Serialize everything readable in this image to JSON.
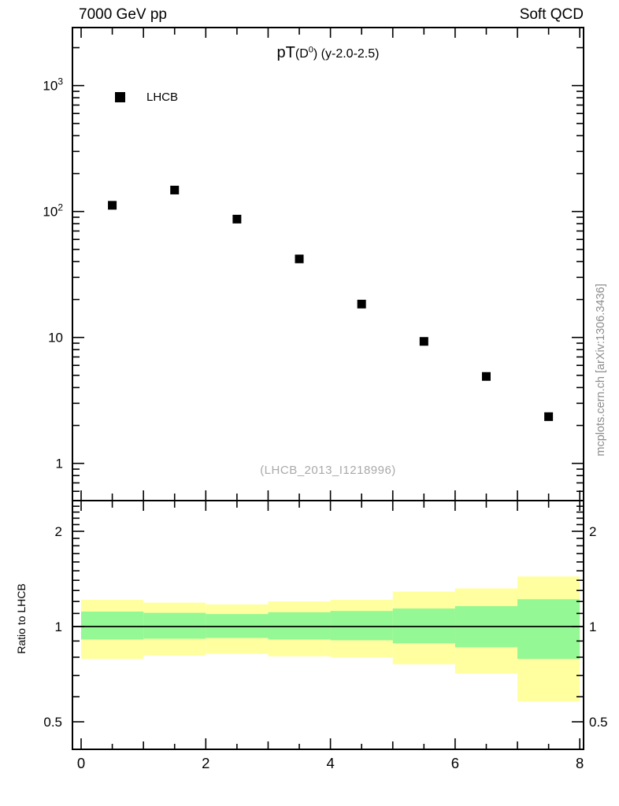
{
  "header": {
    "left": "7000 GeV pp",
    "right": "Soft QCD"
  },
  "title": {
    "pt": "pT",
    "arg_pre": "(D",
    "sup": "0",
    "post": ") (y-2.0-2.5)"
  },
  "legend": {
    "label": "LHCB",
    "marker": "black-filled-square"
  },
  "watermark": "(LHCB_2013_I1218996)",
  "side_label": "mcplots.cern.ch [arXiv:1306.3436]",
  "colors": {
    "outer_band": "#ffff9f",
    "inner_band": "#94f894",
    "marker": "#000000",
    "frame": "#000000",
    "watermark_gray": "#a9a9a9",
    "side_label_gray": "#8c8c8c"
  },
  "chart_data": {
    "type": "scatter",
    "title": "pT(D0) (y-2.0-2.5)",
    "x_axis": {
      "lim": [
        -0.14,
        8.06
      ],
      "labeled_ticks": [
        0,
        2,
        4,
        6,
        8
      ],
      "minor_step": 0.5
    },
    "top_panel": {
      "yscale": "log",
      "ylim": [
        0.5,
        2900
      ],
      "y_labeled_ticks": [
        1000,
        100,
        10,
        1
      ],
      "legend_position": "top-left-inside",
      "series": [
        {
          "name": "LHCB",
          "marker": "filled-square",
          "x": [
            0.5,
            1.5,
            2.5,
            3.5,
            4.5,
            5.5,
            6.5,
            7.5
          ],
          "y": [
            112,
            148,
            87,
            42,
            18.4,
            9.3,
            4.9,
            2.35
          ]
        }
      ]
    },
    "ratio_panel": {
      "ylabel": "Ratio to LHCB",
      "yscale": "log",
      "ylim": [
        0.41,
        2.5
      ],
      "y_labeled_ticks": [
        2,
        1,
        0.5
      ],
      "reference_line_y": 1,
      "bin_edges": [
        0,
        1,
        2,
        3,
        4,
        5,
        6,
        7,
        8
      ],
      "bands": {
        "outer_lo": [
          0.79,
          0.81,
          0.82,
          0.805,
          0.8,
          0.76,
          0.71,
          0.58
        ],
        "outer_hi": [
          1.215,
          1.19,
          1.175,
          1.2,
          1.215,
          1.29,
          1.32,
          1.44
        ],
        "inner_lo": [
          0.91,
          0.915,
          0.92,
          0.91,
          0.905,
          0.885,
          0.86,
          0.79
        ],
        "inner_hi": [
          1.115,
          1.105,
          1.095,
          1.11,
          1.12,
          1.14,
          1.16,
          1.22
        ]
      }
    }
  }
}
